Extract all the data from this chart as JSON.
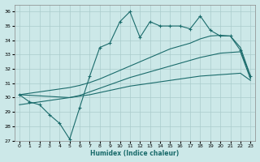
{
  "xlabel": "Humidex (Indice chaleur)",
  "bg_color": "#cce8e8",
  "grid_color": "#aacccc",
  "line_color": "#1a6b6b",
  "xlim": [
    -0.5,
    23.5
  ],
  "ylim": [
    27,
    36.5
  ],
  "yticks": [
    27,
    28,
    29,
    30,
    31,
    32,
    33,
    34,
    35,
    36
  ],
  "xticks": [
    0,
    1,
    2,
    3,
    4,
    5,
    6,
    7,
    8,
    9,
    10,
    11,
    12,
    13,
    14,
    15,
    16,
    17,
    18,
    19,
    20,
    21,
    22,
    23
  ],
  "line1_x": [
    0,
    1,
    2,
    3,
    4,
    5,
    6,
    7,
    8,
    9,
    10,
    11,
    12,
    13,
    14,
    15,
    16,
    17,
    18,
    19,
    20,
    21,
    22,
    23
  ],
  "line1_y": [
    30.2,
    29.7,
    29.5,
    28.8,
    28.2,
    27.1,
    29.3,
    31.5,
    33.5,
    33.8,
    35.3,
    36.0,
    34.2,
    35.3,
    35.0,
    35.0,
    35.0,
    34.8,
    35.7,
    34.7,
    34.3,
    34.3,
    33.3,
    31.5
  ],
  "line2_x": [
    0,
    1,
    2,
    3,
    4,
    5,
    6,
    7,
    8,
    9,
    10,
    11,
    12,
    13,
    14,
    15,
    16,
    17,
    18,
    19,
    20,
    21,
    22,
    23
  ],
  "line2_y": [
    29.5,
    29.6,
    29.7,
    29.8,
    29.9,
    30.0,
    30.1,
    30.2,
    30.35,
    30.5,
    30.65,
    30.8,
    30.9,
    31.0,
    31.1,
    31.2,
    31.3,
    31.4,
    31.5,
    31.55,
    31.6,
    31.65,
    31.7,
    31.2
  ],
  "line3_x": [
    0,
    1,
    2,
    3,
    4,
    5,
    6,
    7,
    8,
    9,
    10,
    11,
    12,
    13,
    14,
    15,
    16,
    17,
    18,
    19,
    20,
    21,
    22,
    23
  ],
  "line3_y": [
    30.2,
    30.3,
    30.4,
    30.5,
    30.6,
    30.7,
    30.85,
    31.05,
    31.3,
    31.6,
    31.9,
    32.2,
    32.5,
    32.8,
    33.1,
    33.4,
    33.6,
    33.8,
    34.1,
    34.3,
    34.35,
    34.3,
    33.5,
    31.5
  ],
  "line4_x": [
    0,
    5,
    6,
    7,
    8,
    9,
    10,
    11,
    12,
    13,
    14,
    15,
    16,
    17,
    18,
    19,
    20,
    21,
    22,
    23
  ],
  "line4_y": [
    30.2,
    30.0,
    30.15,
    30.4,
    30.65,
    30.9,
    31.15,
    31.4,
    31.6,
    31.8,
    32.0,
    32.2,
    32.4,
    32.6,
    32.8,
    32.95,
    33.1,
    33.15,
    33.2,
    31.3
  ]
}
